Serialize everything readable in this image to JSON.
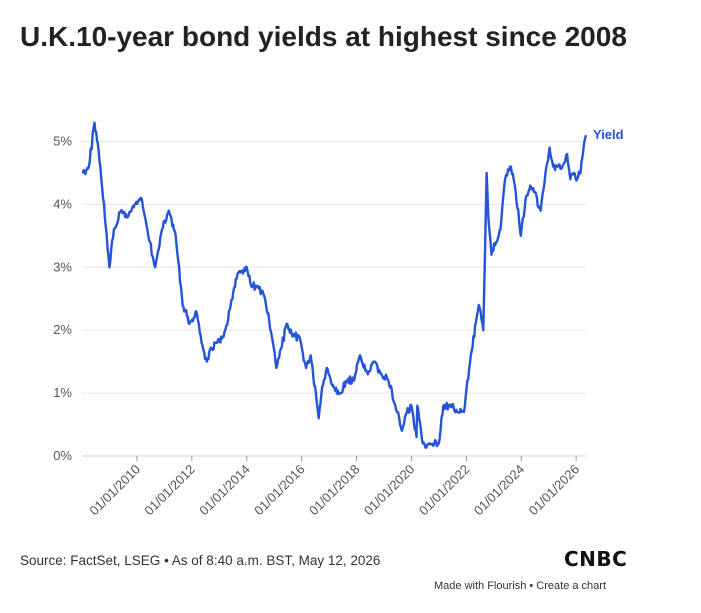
{
  "title": "U.K.10-year bond yields at highest since 2008",
  "source": "Source: FactSet, LSEG • As of 8:40 a.m. BST, May 12, 2026",
  "logo": "CNBC",
  "credits": {
    "flourish": "Made with Flourish",
    "separator": " • ",
    "create": "Create a chart"
  },
  "colors": {
    "line": "#2554d8",
    "grid": "#e6e6e6",
    "text": "#555555"
  },
  "chart_data": {
    "type": "line",
    "title": "U.K.10-year bond yields at highest since 2008",
    "xlabel": "",
    "ylabel": "",
    "x_range": [
      "2008-01-01",
      "2026-05-12"
    ],
    "ylim": [
      0,
      5.5
    ],
    "y_ticks": [
      0,
      1,
      2,
      3,
      4,
      5
    ],
    "y_tick_labels": [
      "0%",
      "1%",
      "2%",
      "3%",
      "4%",
      "5%"
    ],
    "x_ticks": [
      "2010-01-01",
      "2012-01-01",
      "2014-01-01",
      "2016-01-01",
      "2018-01-01",
      "2020-01-01",
      "2022-01-01",
      "2024-01-01",
      "2026-01-01"
    ],
    "x_tick_labels": [
      "01/01/2010",
      "01/01/2012",
      "01/01/2014",
      "01/01/2016",
      "01/01/2018",
      "01/01/2020",
      "01/01/2022",
      "01/01/2024",
      "01/01/2026"
    ],
    "grid": true,
    "legend": "inline label at line end",
    "series": [
      {
        "name": "Yield",
        "x": [
          "2008-01-01",
          "2008-04-01",
          "2008-06-15",
          "2008-09-01",
          "2008-12-31",
          "2009-03-01",
          "2009-06-01",
          "2009-09-01",
          "2009-12-01",
          "2010-03-01",
          "2010-06-01",
          "2010-09-01",
          "2010-12-01",
          "2011-03-01",
          "2011-06-01",
          "2011-09-01",
          "2011-12-01",
          "2012-03-01",
          "2012-06-01",
          "2012-07-20",
          "2012-09-01",
          "2012-12-01",
          "2013-03-01",
          "2013-06-01",
          "2013-09-01",
          "2013-12-31",
          "2014-03-01",
          "2014-06-01",
          "2014-09-01",
          "2014-12-01",
          "2015-01-30",
          "2015-04-01",
          "2015-06-15",
          "2015-09-01",
          "2015-12-01",
          "2016-03-01",
          "2016-05-01",
          "2016-08-15",
          "2016-10-01",
          "2016-12-01",
          "2017-03-01",
          "2017-06-01",
          "2017-09-01",
          "2017-12-01",
          "2018-02-15",
          "2018-06-01",
          "2018-09-01",
          "2018-12-01",
          "2019-03-01",
          "2019-06-01",
          "2019-08-28",
          "2019-11-01",
          "2020-01-01",
          "2020-03-09",
          "2020-03-20",
          "2020-06-01",
          "2020-09-01",
          "2020-12-31",
          "2021-03-01",
          "2021-06-01",
          "2021-09-01",
          "2021-12-01",
          "2022-03-01",
          "2022-06-15",
          "2022-08-15",
          "2022-09-27",
          "2022-10-20",
          "2022-12-01",
          "2023-02-01",
          "2023-04-01",
          "2023-06-01",
          "2023-08-17",
          "2023-10-19",
          "2023-12-27",
          "2024-03-01",
          "2024-05-01",
          "2024-07-01",
          "2024-09-15",
          "2024-12-01",
          "2025-01-13",
          "2025-03-01",
          "2025-05-01",
          "2025-07-01",
          "2025-09-02",
          "2025-10-15",
          "2025-12-01",
          "2026-01-15",
          "2026-03-01",
          "2026-04-01",
          "2026-05-12"
        ],
        "values": [
          4.5,
          4.6,
          5.3,
          4.6,
          3.0,
          3.6,
          3.9,
          3.8,
          4.0,
          4.1,
          3.5,
          3.0,
          3.6,
          3.9,
          3.5,
          2.4,
          2.1,
          2.3,
          1.7,
          1.5,
          1.7,
          1.8,
          1.9,
          2.4,
          2.9,
          3.0,
          2.7,
          2.7,
          2.5,
          1.9,
          1.4,
          1.7,
          2.1,
          1.9,
          1.9,
          1.4,
          1.6,
          0.6,
          1.1,
          1.4,
          1.1,
          1.0,
          1.2,
          1.2,
          1.6,
          1.3,
          1.5,
          1.3,
          1.2,
          0.8,
          0.4,
          0.7,
          0.8,
          0.3,
          0.8,
          0.2,
          0.2,
          0.2,
          0.8,
          0.8,
          0.7,
          0.7,
          1.6,
          2.4,
          2.0,
          4.5,
          3.8,
          3.2,
          3.4,
          3.6,
          4.4,
          4.6,
          4.2,
          3.5,
          4.1,
          4.3,
          4.2,
          3.9,
          4.6,
          4.9,
          4.6,
          4.6,
          4.6,
          4.8,
          4.4,
          4.5,
          4.4,
          4.5,
          4.8,
          5.1
        ]
      }
    ]
  }
}
